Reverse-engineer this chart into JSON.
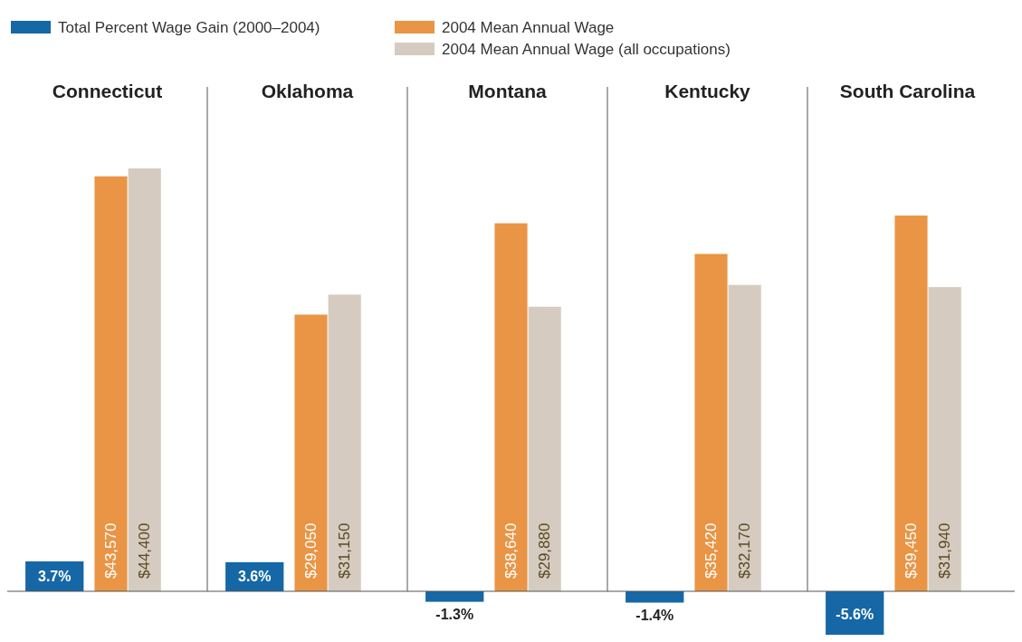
{
  "chart_data": {
    "type": "bar",
    "categories": [
      "Connecticut",
      "Oklahoma",
      "Montana",
      "Kentucky",
      "South Carolina"
    ],
    "legend": "top",
    "series": [
      {
        "name": "Total Percent Wage Gain (2000–2004)",
        "color": "#1667a6",
        "axis": "y2",
        "values": [
          3.7,
          3.6,
          -1.3,
          -1.4,
          -5.6
        ],
        "value_labels": [
          "3.7%",
          "3.6%",
          "-1.3%",
          "-1.4%",
          "-5.6%"
        ]
      },
      {
        "name": "2004 Mean Annual Wage",
        "color": "#e99545",
        "values": [
          43570,
          29050,
          38640,
          35420,
          39450
        ],
        "value_labels": [
          "$43,570",
          "$29,050",
          "$38,640",
          "$35,420",
          "$39,450"
        ]
      },
      {
        "name": "2004 Mean Annual Wage (all occupations)",
        "color": "#d5cbc0",
        "values": [
          44400,
          31150,
          29880,
          32170,
          31940
        ],
        "value_labels": [
          "$44,400",
          "$31,150",
          "$29,880",
          "$32,170",
          "$31,940"
        ]
      }
    ]
  }
}
